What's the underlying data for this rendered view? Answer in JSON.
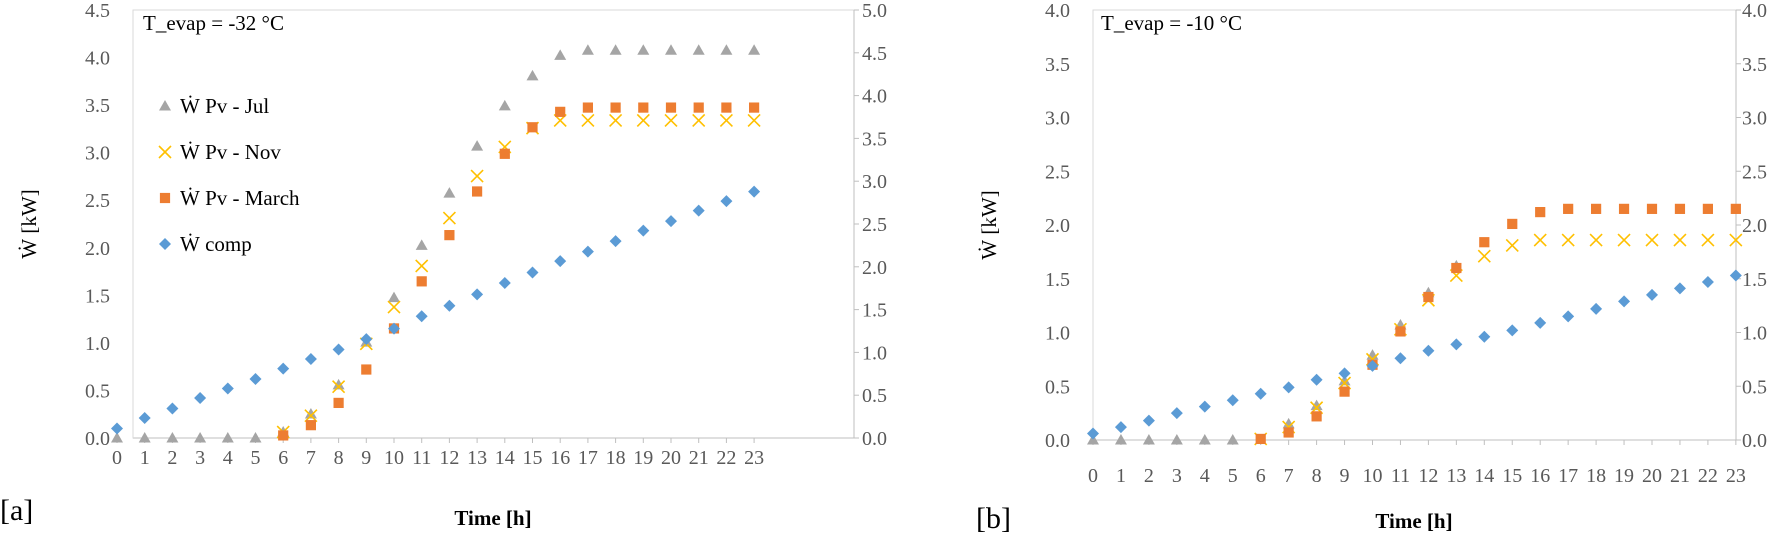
{
  "charts": [
    {
      "panel_label": "[a]",
      "annotation": "T_evap = -32 °C",
      "xlabel": "Time [h]",
      "ylabel": "Ẇ [kW]",
      "yticks_left": [
        "0.0",
        "0.5",
        "1.0",
        "1.5",
        "2.0",
        "2.5",
        "3.0",
        "3.5",
        "4.0",
        "4.5"
      ],
      "yticks_right": [
        "0.0",
        "0.5",
        "1.0",
        "1.5",
        "2.0",
        "2.5",
        "3.0",
        "3.5",
        "4.0",
        "4.5",
        "5.0"
      ]
    },
    {
      "panel_label": "[b]",
      "annotation": "T_evap = -10 °C",
      "xlabel": "Time [h]",
      "ylabel": "Ẇ [kW]",
      "yticks_left": [
        "0.0",
        "0.5",
        "1.0",
        "1.5",
        "2.0",
        "2.5",
        "3.0",
        "3.5",
        "4.0"
      ],
      "yticks_right": [
        "0.0",
        "0.5",
        "1.0",
        "1.5",
        "2.0",
        "2.5",
        "3.0",
        "3.5",
        "4.0"
      ]
    }
  ],
  "chart_data": [
    {
      "type": "scatter",
      "title": "",
      "annotation": "T_evap = -32 °C",
      "xlabel": "Time [h]",
      "ylabel": "Ẇ [kW]",
      "x": [
        0,
        1,
        2,
        3,
        4,
        5,
        6,
        7,
        8,
        9,
        10,
        11,
        12,
        13,
        14,
        15,
        16,
        17,
        18,
        19,
        20,
        21,
        22,
        23
      ],
      "ylim": [
        0,
        4.5
      ],
      "y2lim": [
        0,
        5.0
      ],
      "grid": false,
      "legend_position": "left",
      "series": [
        {
          "name": "Ẇ Pv - Jul",
          "marker": "triangle",
          "color": "#a5a5a5",
          "axis": "right",
          "values": [
            0,
            0,
            0,
            0,
            0,
            0,
            0.07,
            0.28,
            0.62,
            1.12,
            1.64,
            2.25,
            2.86,
            3.41,
            3.88,
            4.23,
            4.47,
            4.53,
            4.53,
            4.53,
            4.53,
            4.53,
            4.53,
            4.53
          ]
        },
        {
          "name": "Ẇ Pv - Nov",
          "marker": "x",
          "color": "#ffc000",
          "axis": "right",
          "values": [
            null,
            null,
            null,
            null,
            null,
            null,
            0.07,
            0.26,
            0.6,
            1.1,
            1.53,
            2.01,
            2.57,
            3.06,
            3.4,
            3.62,
            3.71,
            3.71,
            3.71,
            3.71,
            3.71,
            3.71,
            3.71,
            3.71
          ]
        },
        {
          "name": "Ẇ Pv - March",
          "marker": "square",
          "color": "#ed7d31",
          "axis": "right",
          "values": [
            null,
            null,
            null,
            null,
            null,
            null,
            0.03,
            0.15,
            0.41,
            0.8,
            1.28,
            1.83,
            2.37,
            2.88,
            3.32,
            3.63,
            3.81,
            3.86,
            3.86,
            3.86,
            3.86,
            3.86,
            3.86,
            3.86
          ]
        },
        {
          "name": "Ẇ comp",
          "marker": "diamond",
          "color": "#5b9bd5",
          "axis": "left",
          "values": [
            0.1,
            0.21,
            0.31,
            0.42,
            0.52,
            0.62,
            0.73,
            0.83,
            0.93,
            1.04,
            1.15,
            1.28,
            1.39,
            1.51,
            1.63,
            1.74,
            1.86,
            1.96,
            2.07,
            2.18,
            2.28,
            2.39,
            2.49,
            2.59
          ]
        }
      ]
    },
    {
      "type": "scatter",
      "title": "",
      "annotation": "T_evap = -10 °C",
      "xlabel": "Time [h]",
      "ylabel": "Ẇ [kW]",
      "x": [
        0,
        1,
        2,
        3,
        4,
        5,
        6,
        7,
        8,
        9,
        10,
        11,
        12,
        13,
        14,
        15,
        16,
        17,
        18,
        19,
        20,
        21,
        22,
        23
      ],
      "ylim": [
        0,
        4.0
      ],
      "y2lim": [
        0,
        4.0
      ],
      "grid": false,
      "legend_position": "none",
      "series": [
        {
          "name": "Ẇ Pv - Jul",
          "marker": "triangle",
          "color": "#a5a5a5",
          "axis": "right",
          "values": [
            0,
            0,
            0,
            0,
            0,
            0,
            null,
            0.15,
            0.32,
            0.55,
            0.79,
            1.07,
            1.37,
            1.62,
            null,
            null,
            null,
            null,
            null,
            null,
            null,
            null,
            null,
            null
          ]
        },
        {
          "name": "Ẇ Pv - Nov",
          "marker": "x",
          "color": "#ffc000",
          "axis": "right",
          "values": [
            null,
            null,
            null,
            null,
            null,
            null,
            0.01,
            0.12,
            0.3,
            0.53,
            0.75,
            1.03,
            1.3,
            1.53,
            1.71,
            1.81,
            1.86,
            1.86,
            1.86,
            1.86,
            1.86,
            1.86,
            1.86,
            1.86
          ]
        },
        {
          "name": "Ẇ Pv - March",
          "marker": "square",
          "color": "#ed7d31",
          "axis": "right",
          "values": [
            null,
            null,
            null,
            null,
            null,
            null,
            0.01,
            0.07,
            0.22,
            0.45,
            0.7,
            1.01,
            1.33,
            1.6,
            1.84,
            2.01,
            2.12,
            2.15,
            2.15,
            2.15,
            2.15,
            2.15,
            2.15,
            2.15
          ]
        },
        {
          "name": "Ẇ comp",
          "marker": "diamond",
          "color": "#5b9bd5",
          "axis": "left",
          "values": [
            0.06,
            0.12,
            0.18,
            0.25,
            0.31,
            0.37,
            0.43,
            0.49,
            0.56,
            0.62,
            0.69,
            0.76,
            0.83,
            0.89,
            0.96,
            1.02,
            1.09,
            1.15,
            1.22,
            1.29,
            1.35,
            1.41,
            1.47,
            1.53
          ]
        }
      ]
    }
  ]
}
